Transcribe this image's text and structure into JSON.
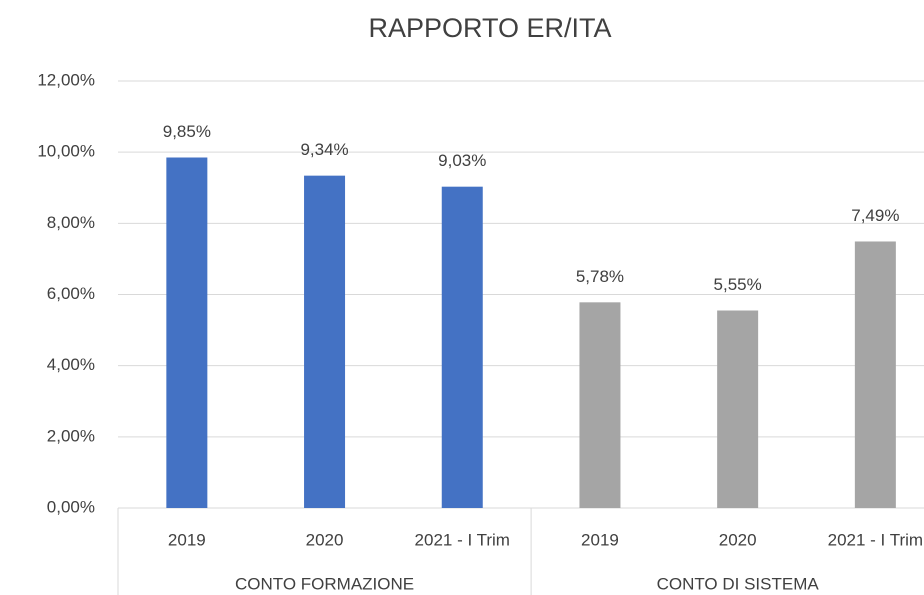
{
  "chart_data": {
    "type": "bar",
    "title": "RAPPORTO ER/ITA",
    "groups": [
      {
        "name": "CONTO FORMAZIONE",
        "color": "#4472c4",
        "categories": [
          "2019",
          "2020",
          "2021 - I Trim"
        ],
        "values": [
          9.85,
          9.34,
          9.03
        ],
        "value_labels": [
          "9,85%",
          "9,34%",
          "9,03%"
        ]
      },
      {
        "name": "CONTO DI SISTEMA",
        "color": "#a5a5a5",
        "categories": [
          "2019",
          "2020",
          "2021 - I Trim"
        ],
        "values": [
          5.78,
          5.55,
          7.49
        ],
        "value_labels": [
          "5,78%",
          "5,55%",
          "7,49%"
        ]
      }
    ],
    "ylim": [
      0,
      12
    ],
    "yticks": [
      {
        "value": 0,
        "label": "0,00%"
      },
      {
        "value": 2,
        "label": "2,00%"
      },
      {
        "value": 4,
        "label": "4,00%"
      },
      {
        "value": 6,
        "label": "6,00%"
      },
      {
        "value": 8,
        "label": "8,00%"
      },
      {
        "value": 10,
        "label": "10,00%"
      },
      {
        "value": 12,
        "label": "12,00%"
      }
    ],
    "grid": true
  }
}
